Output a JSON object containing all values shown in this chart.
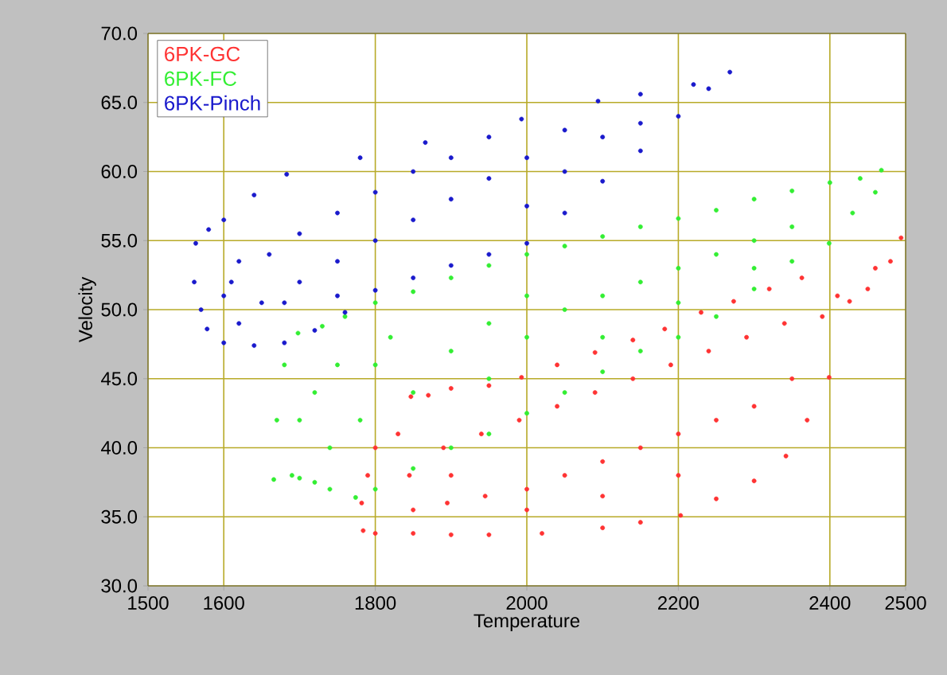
{
  "chart_data": {
    "type": "scatter",
    "xlabel": "Temperature",
    "ylabel": "Velocity",
    "xlim": [
      1500,
      2500
    ],
    "xticks": [
      1500,
      1600,
      1800,
      2000,
      2200,
      2400,
      2500
    ],
    "ylim": [
      30,
      70
    ],
    "yticks": [
      {
        "value": 30,
        "label": "30.0"
      },
      {
        "value": 35,
        "label": "35.0"
      },
      {
        "value": 40,
        "label": "40.0"
      },
      {
        "value": 45,
        "label": "45.0"
      },
      {
        "value": 50,
        "label": "50.0"
      },
      {
        "value": 55,
        "label": "55.0"
      },
      {
        "value": 60,
        "label": "60.0"
      },
      {
        "value": 65,
        "label": "65.0"
      },
      {
        "value": 70,
        "label": "70.0"
      }
    ],
    "grid": true,
    "legend": "top left",
    "marker": "circle",
    "series": [
      {
        "name": "6PK-GC",
        "color": "#ff3333",
        "x": [
          1784,
          1800,
          1850,
          1900,
          1950,
          2020,
          2100,
          2150,
          2203,
          2250,
          2300,
          2342,
          2370,
          2399,
          2426,
          2460,
          2494,
          2480,
          2450,
          2410,
          2363,
          2320,
          2273,
          2230,
          2182,
          2140,
          2090,
          2040,
          1993,
          1950,
          1900,
          1870,
          1847,
          1830,
          1800,
          1790,
          1782,
          1845,
          1850,
          1890,
          1895,
          1940,
          1945,
          1990,
          2000,
          2040,
          2050,
          2090,
          2100,
          2140,
          2150,
          2190,
          2200,
          2240,
          2250,
          2290,
          2300,
          2340,
          2350,
          2390,
          1900,
          2000,
          2100,
          2200
        ],
        "values": [
          34,
          33.8,
          33.8,
          33.7,
          33.7,
          33.8,
          34.2,
          34.6,
          35.1,
          36.3,
          37.6,
          39.4,
          42,
          45.1,
          50.6,
          53,
          55.2,
          53.5,
          51.5,
          51,
          52.3,
          51.5,
          50.6,
          49.8,
          48.6,
          47.8,
          46.9,
          46,
          45.1,
          44.5,
          44.3,
          43.8,
          43.7,
          41,
          40,
          38,
          36,
          38,
          35.5,
          40,
          36,
          41,
          36.5,
          42,
          37,
          43,
          38,
          44,
          39,
          45,
          40,
          46,
          41,
          47,
          42,
          48,
          43,
          49,
          45,
          49.5,
          38,
          35.5,
          36.5,
          38
        ]
      },
      {
        "name": "6PK-FC",
        "color": "#33ee33",
        "x": [
          1666,
          1670,
          1680,
          1698,
          1730,
          1760,
          1800,
          1850,
          1900,
          1950,
          2000,
          2050,
          2100,
          2150,
          2200,
          2250,
          2300,
          2350,
          2400,
          2440,
          2468,
          2460,
          2430,
          2399,
          2350,
          2300,
          2250,
          2200,
          2150,
          2100,
          2050,
          2000,
          1950,
          1900,
          1850,
          1800,
          1774,
          1740,
          1720,
          1700,
          1690,
          1700,
          1720,
          1740,
          1750,
          1780,
          1800,
          1820,
          1850,
          1900,
          1950,
          2000,
          2050,
          2100,
          2150,
          2200,
          2250,
          2300,
          2350,
          1950,
          2000,
          2100,
          2200,
          2300
        ],
        "values": [
          37.7,
          42,
          46,
          48.3,
          48.8,
          49.5,
          50.5,
          51.3,
          52.3,
          53.2,
          54,
          54.6,
          55.3,
          56,
          56.6,
          57.2,
          58,
          58.6,
          59.2,
          59.5,
          60.1,
          58.5,
          57,
          54.8,
          53.5,
          51.5,
          49.5,
          48,
          47,
          45.5,
          44,
          42.5,
          41,
          40,
          38.5,
          37,
          36.4,
          37,
          37.5,
          37.8,
          38,
          42,
          44,
          40,
          46,
          42,
          46,
          48,
          44,
          47,
          49,
          48,
          50,
          51,
          52,
          53,
          54,
          55,
          56,
          45,
          51,
          48,
          50.5,
          53
        ]
      },
      {
        "name": "6PK-Pinch",
        "color": "#1a1acc",
        "x": [
          1563,
          1561,
          1570,
          1578,
          1600,
          1640,
          1680,
          1720,
          1760,
          1800,
          1850,
          1900,
          1950,
          2000,
          2050,
          2100,
          2150,
          2200,
          2240,
          2268,
          2220,
          2150,
          2094,
          1993,
          1866,
          1780,
          1683,
          1640,
          1600,
          1580,
          1600,
          1610,
          1620,
          1650,
          1660,
          1700,
          1700,
          1750,
          1750,
          1800,
          1800,
          1850,
          1850,
          1900,
          1900,
          1950,
          1950,
          2000,
          2000,
          2050,
          2050,
          2100,
          2150,
          1620,
          1680,
          1750
        ],
        "values": [
          54.8,
          52,
          50,
          48.6,
          47.6,
          47.4,
          47.6,
          48.5,
          49.8,
          51.4,
          52.3,
          53.2,
          54,
          54.8,
          57,
          59.3,
          61.5,
          64,
          66,
          67.2,
          66.3,
          65.6,
          65.1,
          63.8,
          62.1,
          61,
          59.8,
          58.3,
          56.5,
          55.8,
          51,
          52,
          53.5,
          50.5,
          54,
          52,
          55.5,
          53.5,
          57,
          55,
          58.5,
          56.5,
          60,
          58,
          61,
          59.5,
          62.5,
          57.5,
          61,
          60,
          63,
          62.5,
          63.5,
          49,
          50.5,
          51
        ]
      }
    ]
  }
}
